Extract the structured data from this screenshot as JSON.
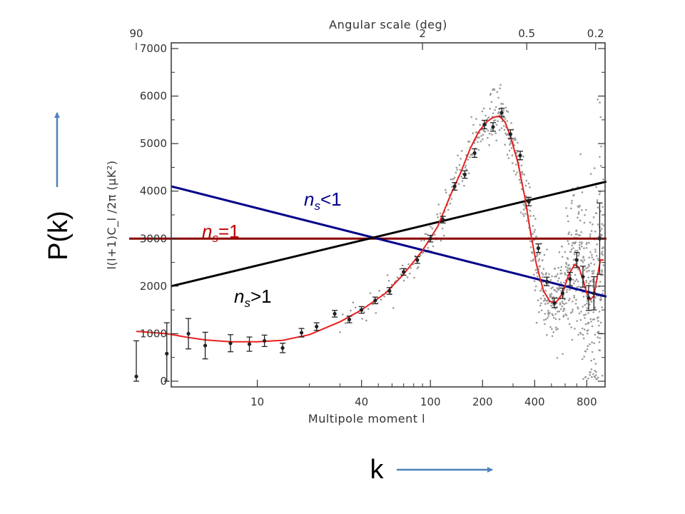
{
  "chart_data": {
    "type": "scatter",
    "top_axis": {
      "label": "Angular scale (deg)",
      "ticks": [
        {
          "label": "90",
          "l": 2
        },
        {
          "label": "2",
          "l": 90
        },
        {
          "label": "0.5",
          "l": 360
        },
        {
          "label": "0.2",
          "l": 900
        }
      ]
    },
    "bottom_axis": {
      "label": "Multipole moment l",
      "scale": "log",
      "range": [
        3.5,
        1000
      ],
      "ticks": [
        10,
        40,
        100,
        200,
        400,
        800
      ]
    },
    "y_axis": {
      "label": "l(l+1)C_l /2π (μK²)",
      "range": [
        0,
        7000
      ],
      "ticks": [
        0,
        1000,
        2000,
        3000,
        4000,
        5000,
        6000,
        7000
      ]
    },
    "binned_points": [
      {
        "l": 2,
        "y": 100,
        "err": 750
      },
      {
        "l": 3,
        "y": 580,
        "err": 650
      },
      {
        "l": 4,
        "y": 1000,
        "err": 320
      },
      {
        "l": 5,
        "y": 750,
        "err": 280
      },
      {
        "l": 7,
        "y": 800,
        "err": 180
      },
      {
        "l": 9,
        "y": 780,
        "err": 150
      },
      {
        "l": 11,
        "y": 850,
        "err": 120
      },
      {
        "l": 14,
        "y": 700,
        "err": 100
      },
      {
        "l": 18,
        "y": 1020,
        "err": 90
      },
      {
        "l": 22,
        "y": 1150,
        "err": 80
      },
      {
        "l": 28,
        "y": 1420,
        "err": 70
      },
      {
        "l": 34,
        "y": 1300,
        "err": 70
      },
      {
        "l": 40,
        "y": 1500,
        "err": 70
      },
      {
        "l": 48,
        "y": 1700,
        "err": 70
      },
      {
        "l": 58,
        "y": 1900,
        "err": 70
      },
      {
        "l": 70,
        "y": 2300,
        "err": 70
      },
      {
        "l": 84,
        "y": 2550,
        "err": 70
      },
      {
        "l": 100,
        "y": 3000,
        "err": 70
      },
      {
        "l": 118,
        "y": 3400,
        "err": 70
      },
      {
        "l": 138,
        "y": 4100,
        "err": 80
      },
      {
        "l": 158,
        "y": 4350,
        "err": 80
      },
      {
        "l": 180,
        "y": 4800,
        "err": 90
      },
      {
        "l": 205,
        "y": 5400,
        "err": 90
      },
      {
        "l": 230,
        "y": 5350,
        "err": 90
      },
      {
        "l": 258,
        "y": 5650,
        "err": 90
      },
      {
        "l": 290,
        "y": 5200,
        "err": 90
      },
      {
        "l": 330,
        "y": 4750,
        "err": 90
      },
      {
        "l": 370,
        "y": 3780,
        "err": 90
      },
      {
        "l": 420,
        "y": 2800,
        "err": 90
      },
      {
        "l": 470,
        "y": 2100,
        "err": 90
      },
      {
        "l": 520,
        "y": 1650,
        "err": 100
      },
      {
        "l": 580,
        "y": 1850,
        "err": 110
      },
      {
        "l": 640,
        "y": 2150,
        "err": 140
      },
      {
        "l": 700,
        "y": 2550,
        "err": 160
      },
      {
        "l": 760,
        "y": 2200,
        "err": 220
      },
      {
        "l": 820,
        "y": 1750,
        "err": 260
      },
      {
        "l": 880,
        "y": 1850,
        "err": 350
      },
      {
        "l": 950,
        "y": 3000,
        "err": 750
      }
    ],
    "model_curve": [
      [
        2,
        1050
      ],
      [
        3,
        1000
      ],
      [
        4,
        920
      ],
      [
        5,
        870
      ],
      [
        7,
        830
      ],
      [
        10,
        830
      ],
      [
        14,
        860
      ],
      [
        20,
        980
      ],
      [
        30,
        1250
      ],
      [
        40,
        1500
      ],
      [
        55,
        1850
      ],
      [
        70,
        2250
      ],
      [
        90,
        2750
      ],
      [
        110,
        3250
      ],
      [
        130,
        3900
      ],
      [
        150,
        4400
      ],
      [
        170,
        4900
      ],
      [
        190,
        5250
      ],
      [
        210,
        5450
      ],
      [
        230,
        5550
      ],
      [
        250,
        5580
      ],
      [
        270,
        5450
      ],
      [
        290,
        5150
      ],
      [
        320,
        4600
      ],
      [
        350,
        3900
      ],
      [
        380,
        3100
      ],
      [
        410,
        2450
      ],
      [
        450,
        1900
      ],
      [
        490,
        1680
      ],
      [
        530,
        1650
      ],
      [
        580,
        1850
      ],
      [
        630,
        2250
      ],
      [
        680,
        2450
      ],
      [
        720,
        2400
      ],
      [
        760,
        2150
      ],
      [
        800,
        1850
      ],
      [
        840,
        1720
      ],
      [
        880,
        1800
      ],
      [
        920,
        2200
      ],
      [
        960,
        2550
      ],
      [
        1000,
        2550
      ]
    ],
    "lines": [
      {
        "label_base": "n",
        "label_sub": "s",
        "label_rel": "=1",
        "color": "#8b0000",
        "label_color": "#c00000",
        "from": [
          2,
          3000
        ],
        "to": [
          1000,
          3000
        ]
      },
      {
        "label_base": "n",
        "label_sub": "s",
        "label_rel": "<1",
        "color": "#00008b",
        "label_color": "#00008b",
        "from": [
          3.5,
          4100
        ],
        "to": [
          1000,
          1780
        ]
      },
      {
        "label_base": "n",
        "label_sub": "s",
        "label_rel": ">1",
        "color": "#000000",
        "label_color": "#000000",
        "from": [
          3.5,
          2000
        ],
        "to": [
          1000,
          4200
        ]
      }
    ],
    "overlay_labels": {
      "y": "P(k)",
      "x": "k"
    },
    "arrow_color": "#4f81bd"
  }
}
